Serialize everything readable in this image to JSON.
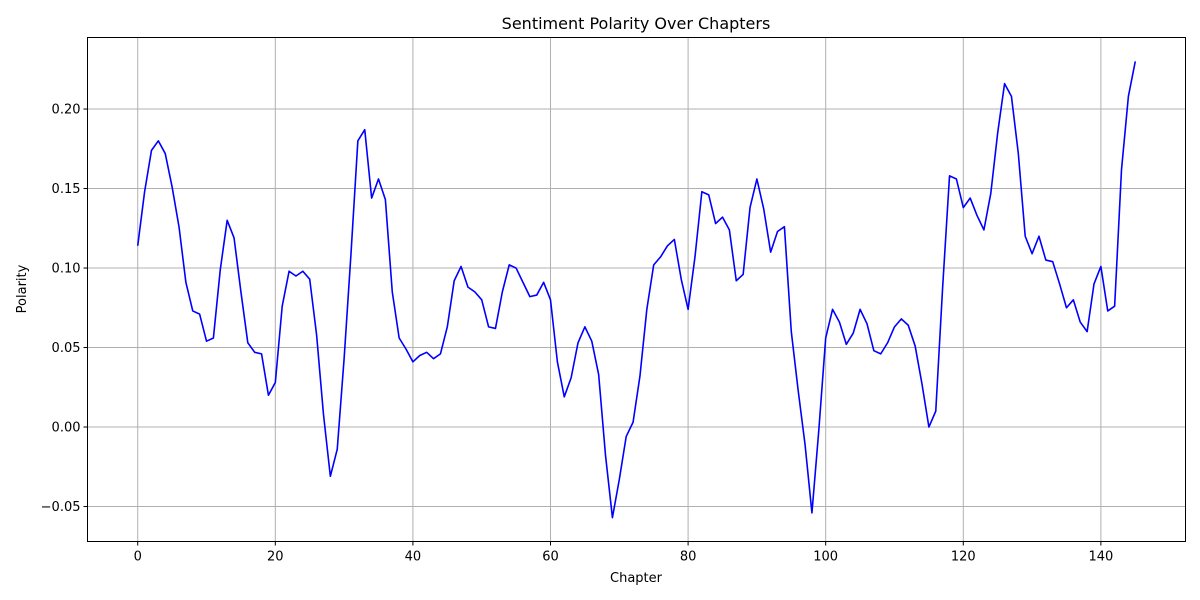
{
  "chart_data": {
    "type": "line",
    "title": "Sentiment Polarity Over Chapters",
    "xlabel": "Chapter",
    "ylabel": "Polarity",
    "xlim": [
      -7.3,
      152.3
    ],
    "ylim": [
      -0.072,
      0.245
    ],
    "xticks": [
      0,
      20,
      40,
      60,
      80,
      100,
      120,
      140
    ],
    "yticks": [
      -0.05,
      0.0,
      0.05,
      0.1,
      0.15,
      0.2
    ],
    "ytick_labels": [
      "−0.05",
      "0.00",
      "0.05",
      "0.10",
      "0.15",
      "0.20"
    ],
    "grid": true,
    "series": [
      {
        "color": "#0000ff",
        "x": [
          0,
          1,
          2,
          3,
          4,
          5,
          6,
          7,
          8,
          9,
          10,
          11,
          12,
          13,
          14,
          15,
          16,
          17,
          18,
          19,
          20,
          21,
          22,
          23,
          24,
          25,
          26,
          27,
          28,
          29,
          30,
          31,
          32,
          33,
          34,
          35,
          36,
          37,
          38,
          39,
          40,
          41,
          42,
          43,
          44,
          45,
          46,
          47,
          48,
          49,
          50,
          51,
          52,
          53,
          54,
          55,
          56,
          57,
          58,
          59,
          60,
          61,
          62,
          63,
          64,
          65,
          66,
          67,
          68,
          69,
          70,
          71,
          72,
          73,
          74,
          75,
          76,
          77,
          78,
          79,
          80,
          81,
          82,
          83,
          84,
          85,
          86,
          87,
          88,
          89,
          90,
          91,
          92,
          93,
          94,
          95,
          96,
          97,
          98,
          99,
          100,
          101,
          102,
          103,
          104,
          105,
          106,
          107,
          108,
          109,
          110,
          111,
          112,
          113,
          114,
          115,
          116,
          117,
          118,
          119,
          120,
          121,
          122,
          123,
          124,
          125,
          126,
          127,
          128,
          129,
          130,
          131,
          132,
          133,
          134,
          135,
          136,
          137,
          138,
          139,
          140,
          141,
          142,
          143,
          144,
          145
        ],
        "y": [
          0.114,
          0.148,
          0.174,
          0.18,
          0.172,
          0.151,
          0.126,
          0.091,
          0.073,
          0.071,
          0.054,
          0.056,
          0.099,
          0.13,
          0.119,
          0.085,
          0.053,
          0.047,
          0.046,
          0.02,
          0.028,
          0.076,
          0.098,
          0.095,
          0.098,
          0.093,
          0.058,
          0.008,
          -0.031,
          -0.014,
          0.043,
          0.109,
          0.18,
          0.187,
          0.144,
          0.156,
          0.143,
          0.085,
          0.056,
          0.049,
          0.041,
          0.045,
          0.047,
          0.043,
          0.046,
          0.063,
          0.092,
          0.101,
          0.088,
          0.085,
          0.08,
          0.063,
          0.062,
          0.085,
          0.102,
          0.1,
          0.091,
          0.082,
          0.083,
          0.091,
          0.08,
          0.041,
          0.019,
          0.031,
          0.053,
          0.063,
          0.054,
          0.033,
          -0.018,
          -0.057,
          -0.033,
          -0.006,
          0.003,
          0.032,
          0.074,
          0.102,
          0.107,
          0.114,
          0.118,
          0.093,
          0.074,
          0.107,
          0.148,
          0.146,
          0.128,
          0.132,
          0.124,
          0.092,
          0.096,
          0.138,
          0.156,
          0.137,
          0.11,
          0.123,
          0.126,
          0.06,
          0.023,
          -0.011,
          -0.054,
          -0.002,
          0.056,
          0.074,
          0.066,
          0.052,
          0.059,
          0.074,
          0.065,
          0.048,
          0.046,
          0.053,
          0.063,
          0.068,
          0.064,
          0.051,
          0.027,
          0.0,
          0.01,
          0.088,
          0.158,
          0.156,
          0.138,
          0.144,
          0.133,
          0.124,
          0.147,
          0.185,
          0.216,
          0.208,
          0.172,
          0.12,
          0.109,
          0.12,
          0.105,
          0.104,
          0.09,
          0.075,
          0.08,
          0.066,
          0.06,
          0.09,
          0.101,
          0.073,
          0.076,
          0.162,
          0.208,
          0.23
        ]
      }
    ]
  }
}
